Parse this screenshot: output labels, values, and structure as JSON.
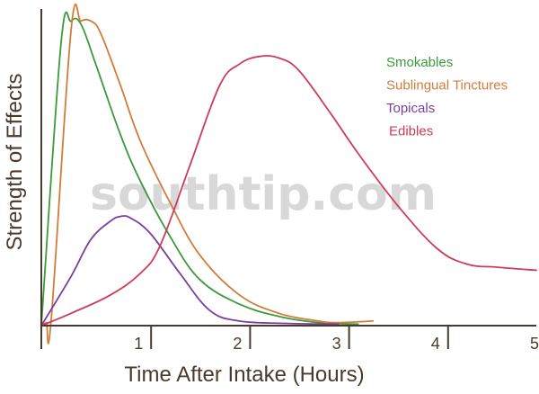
{
  "chart_data": {
    "type": "line",
    "xlabel": "Time After Intake (Hours)",
    "ylabel": "Strength of Effects",
    "xlim": [
      0,
      5
    ],
    "ylim": [
      0,
      1
    ],
    "xticks": [
      1,
      2,
      3,
      4,
      5
    ],
    "y_tick_labels_shown": false,
    "grid": false,
    "legend_position": "top-right",
    "watermark": "southtip.com",
    "axis_color": "#4a3a2e",
    "series": [
      {
        "name": "Smokables",
        "color": "#3c9a3c",
        "x": [
          0,
          0.2,
          0.3,
          0.4,
          0.55,
          0.8,
          1.0,
          1.3,
          1.6,
          2.0,
          2.4,
          2.8,
          3.2
        ],
        "y": [
          0,
          0.92,
          0.99,
          0.98,
          0.85,
          0.62,
          0.47,
          0.29,
          0.15,
          0.07,
          0.03,
          0.01,
          0.005
        ]
      },
      {
        "name": "Sublingual Tinctures",
        "color": "#d27c3c",
        "x": [
          0,
          0.05,
          0.1,
          0.3,
          0.4,
          0.5,
          0.6,
          0.8,
          1.0,
          1.3,
          1.6,
          2.0,
          2.4,
          2.8,
          3.0,
          3.35
        ],
        "y": [
          0,
          0.01,
          0.02,
          0.96,
          0.99,
          0.99,
          0.95,
          0.78,
          0.6,
          0.4,
          0.23,
          0.1,
          0.04,
          0.015,
          0.01,
          0.015
        ]
      },
      {
        "name": "Topicals",
        "color": "#7a3e9e",
        "x": [
          0,
          0.3,
          0.5,
          0.7,
          0.8,
          0.9,
          1.1,
          1.4,
          1.7,
          2.0,
          2.5,
          3.0
        ],
        "y": [
          0,
          0.16,
          0.28,
          0.34,
          0.355,
          0.35,
          0.3,
          0.17,
          0.05,
          0.015,
          0.007,
          0.005
        ]
      },
      {
        "name": "Edibles",
        "color": "#cc3c5a",
        "x": [
          0,
          0.3,
          0.7,
          1.0,
          1.2,
          1.5,
          1.8,
          2.0,
          2.2,
          2.4,
          2.6,
          2.9,
          3.2,
          3.6,
          4.0,
          4.3,
          4.6,
          5.0
        ],
        "y": [
          0,
          0.04,
          0.1,
          0.17,
          0.26,
          0.52,
          0.78,
          0.85,
          0.875,
          0.87,
          0.83,
          0.7,
          0.56,
          0.39,
          0.25,
          0.2,
          0.19,
          0.18
        ]
      }
    ]
  }
}
